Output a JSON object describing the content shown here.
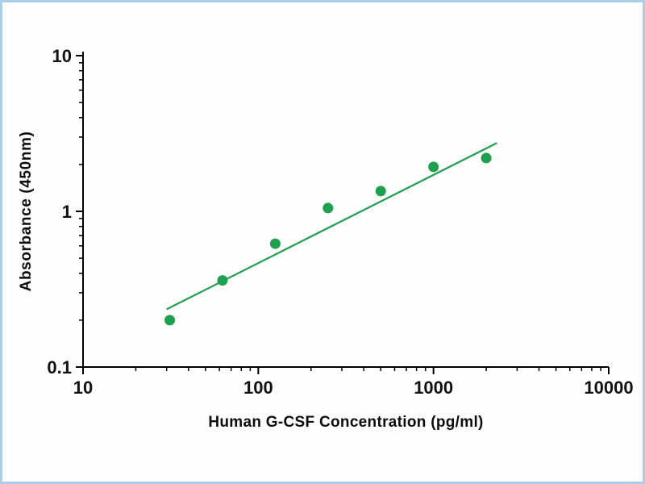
{
  "colors": {
    "frame_border": "#ABCDE8",
    "background": "#FEFEFE",
    "axis": "#000000",
    "tick_label": "#111111",
    "series_green": "#1CA24C"
  },
  "chart_data": {
    "type": "scatter",
    "title": "",
    "xlabel": "Human G-CSF Concentration (pg/ml)",
    "ylabel": "Absorbance (450nm)",
    "x_scale": "log",
    "y_scale": "log",
    "xlim": [
      10,
      10000
    ],
    "ylim": [
      0.1,
      10
    ],
    "x_tick_labels": [
      "10",
      "100",
      "1000",
      "10000"
    ],
    "y_tick_labels": [
      "0.1",
      "1",
      "10"
    ],
    "grid": false,
    "legend": false,
    "series": [
      {
        "name": "standard-points",
        "type": "scatter",
        "x": [
          31.25,
          62.5,
          125,
          250,
          500,
          1000,
          2000
        ],
        "y": [
          0.2,
          0.36,
          0.62,
          1.05,
          1.35,
          1.93,
          2.2
        ],
        "color": "#1CA24C"
      },
      {
        "name": "trend-line",
        "type": "line",
        "x": [
          30,
          2300
        ],
        "y": [
          0.235,
          2.75
        ],
        "color": "#1CA24C"
      }
    ]
  }
}
